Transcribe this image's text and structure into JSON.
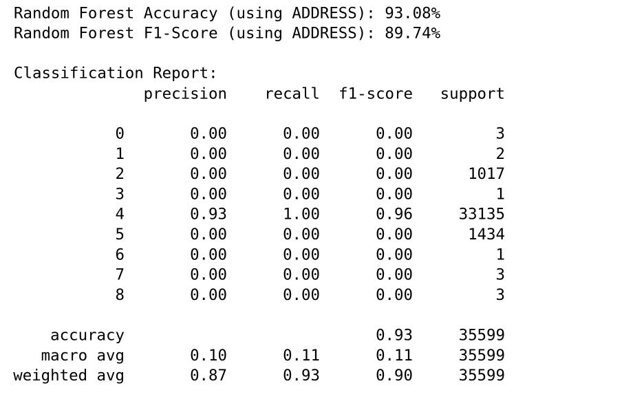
{
  "lines": [
    "Random Forest Accuracy (using ADDRESS): 93.08%",
    "Random Forest F1-Score (using ADDRESS): 89.74%"
  ],
  "report": {
    "title": "Classification Report:",
    "columns": [
      "precision",
      "recall",
      "f1-score",
      "support"
    ],
    "rows": [
      [
        "0",
        "0.00",
        "0.00",
        "0.00",
        "3"
      ],
      [
        "1",
        "0.00",
        "0.00",
        "0.00",
        "2"
      ],
      [
        "2",
        "0.00",
        "0.00",
        "0.00",
        "1017"
      ],
      [
        "3",
        "0.00",
        "0.00",
        "0.00",
        "1"
      ],
      [
        "4",
        "0.93",
        "1.00",
        "0.96",
        "33135"
      ],
      [
        "5",
        "0.00",
        "0.00",
        "0.00",
        "1434"
      ],
      [
        "6",
        "0.00",
        "0.00",
        "0.00",
        "1"
      ],
      [
        "7",
        "0.00",
        "0.00",
        "0.00",
        "3"
      ],
      [
        "8",
        "0.00",
        "0.00",
        "0.00",
        "3"
      ]
    ],
    "summary": [
      {
        "label": "accuracy",
        "f1": "0.93",
        "support": "35599"
      },
      {
        "label": "macro avg",
        "precision": "0.10",
        "recall": "0.11",
        "f1": "0.11",
        "support": "35599"
      },
      {
        "label": "weighted avg",
        "precision": "0.87",
        "recall": "0.93",
        "f1": "0.90",
        "support": "35599"
      }
    ]
  }
}
